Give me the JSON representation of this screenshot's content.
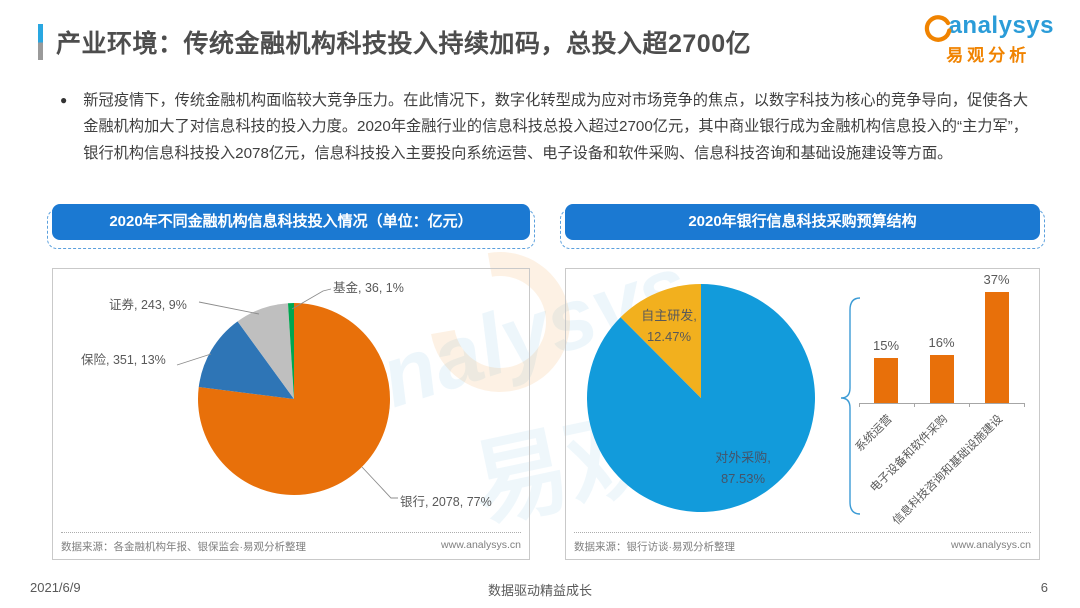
{
  "header": {
    "title": "产业环境：传统金融机构科技投入持续加码，总投入超2700亿",
    "logo": {
      "brand": "analysys",
      "brand_cn": "易观分析",
      "accent_orange": "#f08300",
      "accent_blue": "#2b9cd8"
    }
  },
  "summary": {
    "bullet_text": "新冠疫情下，传统金融机构面临较大竞争压力。在此情况下，数字化转型成为应对市场竞争的焦点，以数字科技为核心的竞争导向，促使各大金融机构加大了对信息科技的投入力度。2020年金融行业的信息科技总投入超过2700亿元，其中商业银行成为金融机构信息投入的“主力军”， 银行机构信息科技投入2078亿元，信息科技投入主要投向系统运营、电子设备和软件采购、信息科技咨询和基础设施建设等方面。"
  },
  "charts": {
    "left": {
      "header": "2020年不同金融机构信息科技投入情况（单位：亿元）",
      "source": "数据来源：各金融机构年报、银保监会·易观分析整理",
      "website": "www.analysys.cn"
    },
    "right": {
      "header": "2020年银行信息科技采购预算结构",
      "source": "数据来源：银行访谈·易观分析整理",
      "website": "www.analysys.cn"
    }
  },
  "chart_data": [
    {
      "type": "pie",
      "title": "2020年不同金融机构信息科技投入情况（单位：亿元）",
      "unit": "亿元",
      "start_angle_deg": 0,
      "direction": "clockwise",
      "legend": "none",
      "slices": [
        {
          "label": "银行",
          "value": 2078,
          "pct": 77,
          "color": "#e8700a",
          "display": "银行, 2078, 77%"
        },
        {
          "label": "保险",
          "value": 351,
          "pct": 13,
          "color": "#2e75b6",
          "display": "保险, 351, 13%"
        },
        {
          "label": "证券",
          "value": 243,
          "pct": 9,
          "color": "#bfbfbf",
          "display": "证券, 243, 9%"
        },
        {
          "label": "基金",
          "value": 36,
          "pct": 1,
          "color": "#00a650",
          "display": "基金, 36, 1%"
        }
      ]
    },
    {
      "type": "pie",
      "title": "2020年银行信息科技采购预算结构",
      "start_angle_deg": 0,
      "direction": "clockwise",
      "legend": "none",
      "slices": [
        {
          "label": "对外采购",
          "pct": 87.53,
          "color": "#129bdb",
          "display_l1": "对外采购,",
          "display_l2": "87.53%"
        },
        {
          "label": "自主研发",
          "pct": 12.47,
          "color": "#f2b01e",
          "display_l1": "自主研发,",
          "display_l2": "12.47%"
        }
      ]
    },
    {
      "type": "bar",
      "title": "2020年银行信息科技采购预算结构（对外采购细分）",
      "categories": [
        "系统运营",
        "电子设备和软件采购",
        "信息科技咨询和基础设施建设"
      ],
      "values": [
        15,
        16,
        37
      ],
      "value_labels": [
        "15%",
        "16%",
        "37%"
      ],
      "bar_color": "#e8700a",
      "ylim": [
        0,
        40
      ],
      "grid": false
    }
  ],
  "footer": {
    "date": "2021/6/9",
    "slogan": "数据驱动精益成长",
    "page": "6"
  }
}
